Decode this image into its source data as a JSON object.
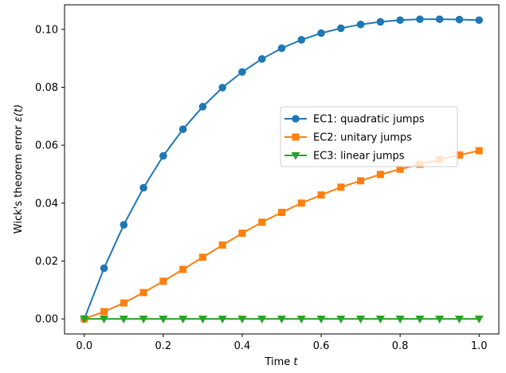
{
  "chart_data": {
    "type": "line",
    "xlabel": "Time",
    "xlabel_var": "t",
    "ylabel": "Wick's theorem error",
    "ylabel_var": "ε(t)",
    "xlim": [
      -0.05,
      1.05
    ],
    "ylim": [
      -0.0052,
      0.1085
    ],
    "xticks": [
      0.0,
      0.2,
      0.4,
      0.6,
      0.8,
      1.0
    ],
    "xtick_labels": [
      "0.0",
      "0.2",
      "0.4",
      "0.6",
      "0.8",
      "1.0"
    ],
    "yticks": [
      0.0,
      0.02,
      0.04,
      0.06,
      0.08,
      0.1
    ],
    "ytick_labels": [
      "0.00",
      "0.02",
      "0.04",
      "0.06",
      "0.08",
      "0.10"
    ],
    "grid": false,
    "legend_position": "center-right",
    "x": [
      0.0,
      0.05,
      0.1,
      0.15,
      0.2,
      0.25,
      0.3,
      0.35,
      0.4,
      0.45,
      0.5,
      0.55,
      0.6,
      0.65,
      0.7,
      0.75,
      0.8,
      0.85,
      0.9,
      0.95,
      1.0
    ],
    "series": [
      {
        "name": "EC1: quadratic jumps",
        "color": "#1f77b4",
        "marker": "circle",
        "values": [
          0.0,
          0.0175,
          0.0325,
          0.0453,
          0.0563,
          0.0655,
          0.0733,
          0.0799,
          0.0853,
          0.0898,
          0.0935,
          0.0964,
          0.0987,
          0.1004,
          0.1017,
          0.1026,
          0.1032,
          0.1035,
          0.1035,
          0.1034,
          0.1032
        ]
      },
      {
        "name": "EC2: unitary jumps",
        "color": "#ff7f0e",
        "marker": "square",
        "values": [
          0.0,
          0.0025,
          0.0055,
          0.0091,
          0.013,
          0.0171,
          0.0213,
          0.0255,
          0.0296,
          0.0334,
          0.0368,
          0.04,
          0.0428,
          0.0455,
          0.0477,
          0.0499,
          0.0517,
          0.0534,
          0.0551,
          0.0566,
          0.0581
        ]
      },
      {
        "name": "EC3: linear jumps",
        "color": "#2ca02c",
        "marker": "triangle-down",
        "values": [
          0.0,
          0.0,
          0.0,
          0.0,
          0.0,
          0.0,
          0.0,
          0.0,
          0.0,
          0.0,
          0.0,
          0.0,
          0.0,
          0.0,
          0.0,
          0.0,
          0.0,
          0.0,
          0.0,
          0.0,
          0.0
        ]
      }
    ]
  }
}
